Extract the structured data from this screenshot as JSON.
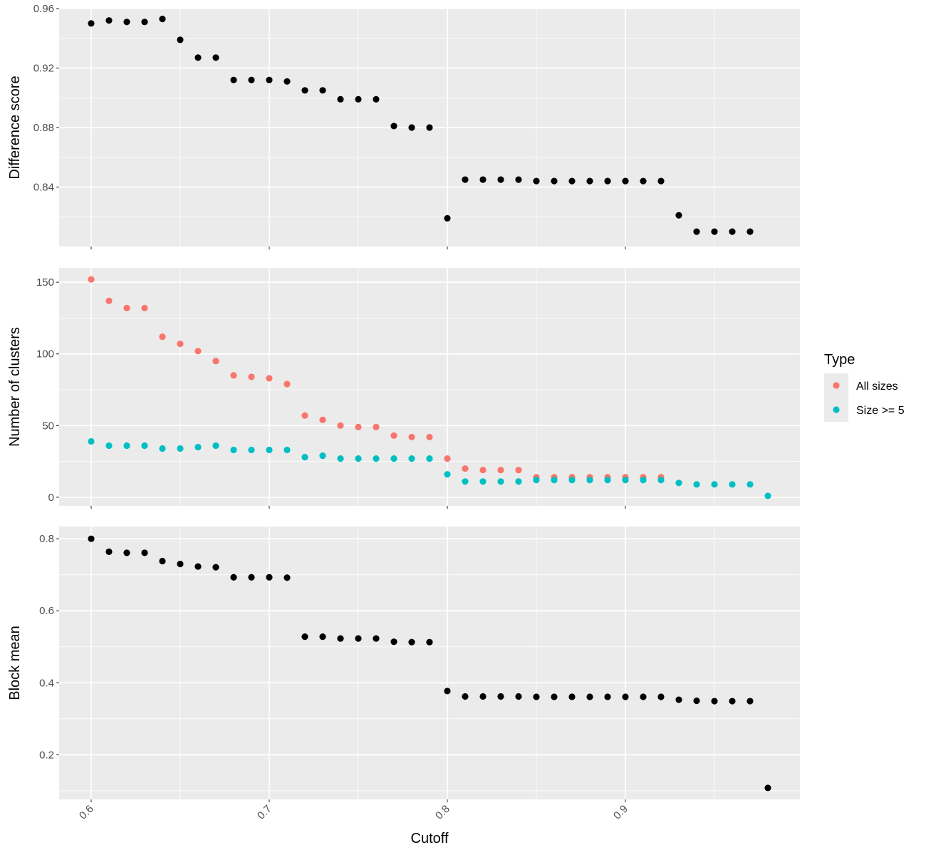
{
  "chart_data": {
    "type": "scatter",
    "x_label": "Cutoff",
    "x_ticks": [
      "0.6",
      "0.7",
      "0.8",
      "0.9"
    ],
    "xlim": [
      0.582,
      0.998
    ],
    "grid": true,
    "legend": {
      "title": "Type",
      "position": "right",
      "entries": [
        {
          "label": "All sizes",
          "color": "#F8766D"
        },
        {
          "label": "Size >= 5",
          "color": "#00BFC4"
        }
      ]
    },
    "panels": [
      {
        "ylabel": "Difference score",
        "y_ticks": [
          "0.96",
          "0.92",
          "0.88",
          "0.84"
        ],
        "ylim": [
          0.8,
          0.96
        ],
        "series": [
          {
            "color": "#000000",
            "x": [
              0.6,
              0.61,
              0.62,
              0.63,
              0.64,
              0.65,
              0.66,
              0.67,
              0.68,
              0.69,
              0.7,
              0.71,
              0.72,
              0.73,
              0.74,
              0.75,
              0.76,
              0.77,
              0.78,
              0.79,
              0.8,
              0.81,
              0.82,
              0.83,
              0.84,
              0.85,
              0.86,
              0.87,
              0.88,
              0.89,
              0.9,
              0.91,
              0.92,
              0.93,
              0.94,
              0.95,
              0.96,
              0.97
            ],
            "y": [
              0.95,
              0.952,
              0.951,
              0.951,
              0.953,
              0.939,
              0.927,
              0.927,
              0.912,
              0.912,
              0.912,
              0.911,
              0.905,
              0.905,
              0.899,
              0.899,
              0.899,
              0.881,
              0.88,
              0.88,
              0.819,
              0.845,
              0.845,
              0.845,
              0.845,
              0.844,
              0.844,
              0.844,
              0.844,
              0.844,
              0.844,
              0.844,
              0.844,
              0.821,
              0.81,
              0.81,
              0.81,
              0.81
            ]
          }
        ]
      },
      {
        "ylabel": "Number of clusters",
        "y_ticks": [
          "150",
          "100",
          "50",
          "0"
        ],
        "ylim": [
          -6,
          160
        ],
        "series": [
          {
            "name": "All sizes",
            "color": "#F8766D",
            "x": [
              0.6,
              0.61,
              0.62,
              0.63,
              0.64,
              0.65,
              0.66,
              0.67,
              0.68,
              0.69,
              0.7,
              0.71,
              0.72,
              0.73,
              0.74,
              0.75,
              0.76,
              0.77,
              0.78,
              0.79,
              0.8,
              0.81,
              0.82,
              0.83,
              0.84,
              0.85,
              0.86,
              0.87,
              0.88,
              0.89,
              0.9,
              0.91,
              0.92
            ],
            "y": [
              152,
              137,
              132,
              132,
              112,
              107,
              102,
              95,
              85,
              84,
              83,
              79,
              57,
              54,
              50,
              49,
              49,
              43,
              42,
              42,
              27,
              20,
              19,
              19,
              19,
              14,
              14,
              14,
              14,
              14,
              14,
              14,
              14
            ]
          },
          {
            "name": "Size >= 5",
            "color": "#00BFC4",
            "x": [
              0.6,
              0.61,
              0.62,
              0.63,
              0.64,
              0.65,
              0.66,
              0.67,
              0.68,
              0.69,
              0.7,
              0.71,
              0.72,
              0.73,
              0.74,
              0.75,
              0.76,
              0.77,
              0.78,
              0.79,
              0.8,
              0.81,
              0.82,
              0.83,
              0.84,
              0.85,
              0.86,
              0.87,
              0.88,
              0.89,
              0.9,
              0.91,
              0.92,
              0.93,
              0.94,
              0.95,
              0.96,
              0.97,
              0.98
            ],
            "y": [
              39,
              36,
              36,
              36,
              34,
              34,
              35,
              36,
              33,
              33,
              33,
              33,
              28,
              29,
              27,
              27,
              27,
              27,
              27,
              27,
              16,
              11,
              11,
              11,
              11,
              12,
              12,
              12,
              12,
              12,
              12,
              12,
              12,
              10,
              9,
              9,
              9,
              9,
              1
            ]
          }
        ]
      },
      {
        "ylabel": "Block mean",
        "y_ticks": [
          "0.8",
          "0.6",
          "0.4",
          "0.2"
        ],
        "ylim": [
          0.076,
          0.834
        ],
        "series": [
          {
            "color": "#000000",
            "x": [
              0.6,
              0.61,
              0.62,
              0.63,
              0.64,
              0.65,
              0.66,
              0.67,
              0.68,
              0.69,
              0.7,
              0.71,
              0.72,
              0.73,
              0.74,
              0.75,
              0.76,
              0.77,
              0.78,
              0.79,
              0.8,
              0.81,
              0.82,
              0.83,
              0.84,
              0.85,
              0.86,
              0.87,
              0.88,
              0.89,
              0.9,
              0.91,
              0.92,
              0.93,
              0.94,
              0.95,
              0.96,
              0.97,
              0.98
            ],
            "y": [
              0.8,
              0.764,
              0.761,
              0.761,
              0.738,
              0.73,
              0.723,
              0.721,
              0.693,
              0.693,
              0.693,
              0.692,
              0.528,
              0.528,
              0.523,
              0.523,
              0.523,
              0.514,
              0.513,
              0.513,
              0.377,
              0.362,
              0.362,
              0.362,
              0.362,
              0.361,
              0.361,
              0.361,
              0.361,
              0.361,
              0.361,
              0.361,
              0.361,
              0.353,
              0.35,
              0.349,
              0.349,
              0.349,
              0.108
            ]
          }
        ]
      }
    ]
  }
}
